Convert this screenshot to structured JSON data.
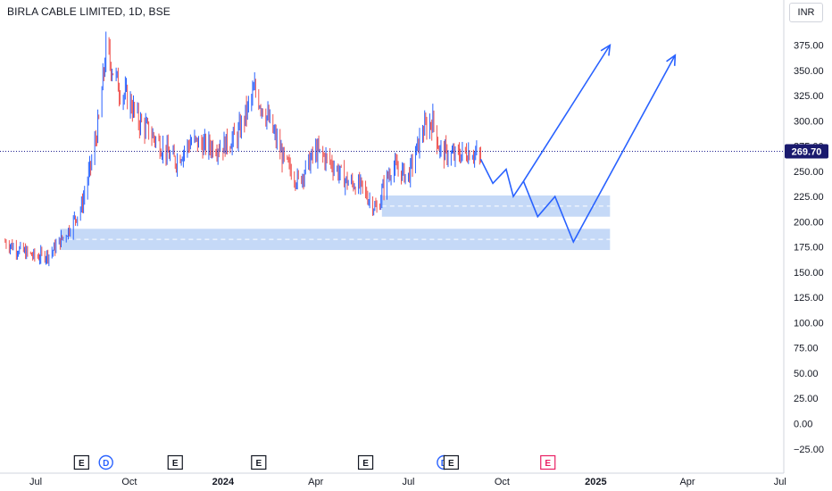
{
  "header": {
    "symbol_title": "BIRLA CABLE LIMITED, 1D, BSE",
    "currency_button": "INR"
  },
  "colors": {
    "up": "#26a69a",
    "down": "#ef5350",
    "candle_up": "#2962ff",
    "candle_down": "#ef5350",
    "price_line": "#1f1f8f",
    "price_label_bg": "#1a1a6e",
    "zone_fill": "#bbd2f6",
    "projection": "#2962ff",
    "earnings_badge": "#131722",
    "dividend_badge": "#2962ff",
    "future_earnings_badge": "#e91e63"
  },
  "chart_data": {
    "type": "candlestick",
    "title": "BIRLA CABLE LIMITED, 1D, BSE",
    "currency": "INR",
    "last_price": 269.7,
    "last_price_label": "269.70",
    "ylim": [
      -35,
      395
    ],
    "y_ticks": [
      -25,
      0,
      25,
      50,
      75,
      100,
      125,
      150,
      175,
      200,
      225,
      250,
      275,
      300,
      325,
      350,
      375
    ],
    "y_tick_labels": [
      "−25.00",
      "0.00",
      "25.00",
      "50.00",
      "75.00",
      "100.00",
      "125.00",
      "150.00",
      "175.00",
      "200.00",
      "225.00",
      "250.00",
      "275.00",
      "300.00",
      "325.00",
      "350.00",
      "375.00"
    ],
    "x_tick_labels": [
      "Jul",
      "Oct",
      "2024",
      "Apr",
      "Jul",
      "Oct",
      "2025",
      "Apr",
      "Jul"
    ],
    "price_series": {
      "dates": [
        "2023-06-01",
        "2023-06-15",
        "2023-07-01",
        "2023-07-15",
        "2023-08-01",
        "2023-08-15",
        "2023-08-25",
        "2023-09-01",
        "2023-09-08",
        "2023-09-15",
        "2023-09-22",
        "2023-10-01",
        "2023-10-10",
        "2023-10-20",
        "2023-11-01",
        "2023-11-15",
        "2023-12-01",
        "2023-12-15",
        "2024-01-01",
        "2024-01-15",
        "2024-02-01",
        "2024-02-15",
        "2024-03-01",
        "2024-03-15",
        "2024-04-01",
        "2024-04-15",
        "2024-05-01",
        "2024-05-15",
        "2024-06-01",
        "2024-06-05",
        "2024-06-15",
        "2024-07-01",
        "2024-07-15",
        "2024-07-25",
        "2024-08-01",
        "2024-08-15",
        "2024-09-01",
        "2024-09-10"
      ],
      "close": [
        180,
        172,
        165,
        168,
        190,
        215,
        260,
        300,
        370,
        350,
        330,
        320,
        300,
        290,
        275,
        260,
        280,
        275,
        275,
        285,
        330,
        300,
        260,
        240,
        270,
        260,
        240,
        235,
        210,
        230,
        255,
        245,
        290,
        300,
        270,
        265,
        270,
        262
      ]
    },
    "demand_zones": [
      {
        "from": "2024-06-05",
        "to": "2025-01-15",
        "low": 205,
        "high": 226
      },
      {
        "from": "2023-07-25",
        "to": "2025-01-15",
        "low": 172,
        "high": 193
      }
    ],
    "projection_paths": [
      {
        "dates": [
          "2024-09-10",
          "2024-09-22",
          "2024-10-05",
          "2024-10-12",
          "2024-10-22",
          "2025-01-15"
        ],
        "values": [
          262,
          238,
          252,
          225,
          240,
          375
        ]
      },
      {
        "dates": [
          "2024-10-22",
          "2024-11-05",
          "2024-11-22",
          "2024-12-10",
          "2025-03-20"
        ],
        "values": [
          240,
          205,
          225,
          180,
          365
        ]
      }
    ],
    "events": [
      {
        "type": "E",
        "date": "2023-08-15"
      },
      {
        "type": "D",
        "date": "2023-09-08"
      },
      {
        "type": "E",
        "date": "2023-11-15"
      },
      {
        "type": "E",
        "date": "2024-02-05"
      },
      {
        "type": "E",
        "date": "2024-05-20"
      },
      {
        "type": "D",
        "date": "2024-08-05"
      },
      {
        "type": "E",
        "date": "2024-08-12"
      },
      {
        "type": "E",
        "date": "2024-11-15"
      }
    ]
  }
}
